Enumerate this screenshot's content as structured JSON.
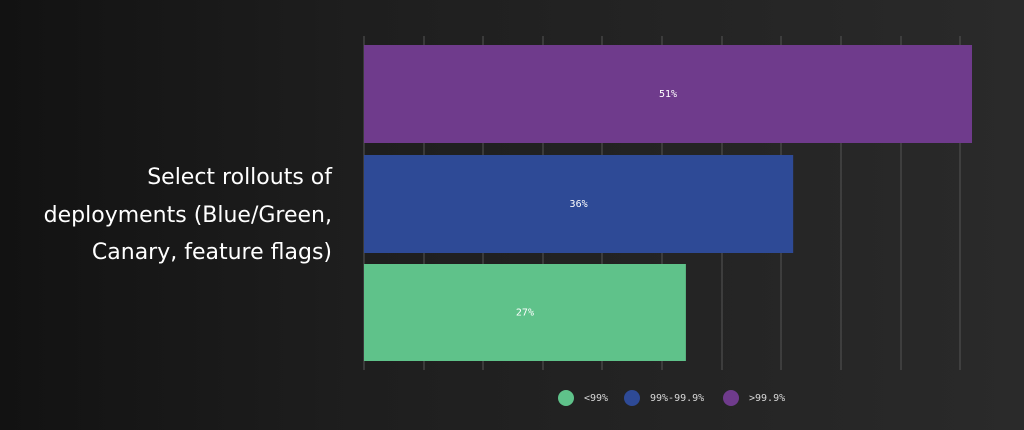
{
  "chart_data": {
    "type": "bar",
    "orientation": "horizontal",
    "categories": [
      "Select rollouts of\ndeployments (Blue/Green,\nCanary, feature flags)"
    ],
    "series": [
      {
        "name": ">99.9%",
        "values": [
          51
        ],
        "color": "#6f3b8c"
      },
      {
        "name": "99%-99.9%",
        "values": [
          36
        ],
        "color": "#2e4a96"
      },
      {
        "name": "<99%",
        "values": [
          27
        ],
        "color": "#5fc28a"
      }
    ],
    "data_labels": [
      "51%",
      "36%",
      "27%"
    ],
    "xlim": [
      0,
      51
    ],
    "grid": true,
    "legend_position": "bottom",
    "legend": [
      {
        "label": "<99%",
        "color": "#5fc28a"
      },
      {
        "label": "99%-99.9%",
        "color": "#2e4a96"
      },
      {
        "label": ">99.9%",
        "color": "#6f3b8c"
      }
    ]
  }
}
